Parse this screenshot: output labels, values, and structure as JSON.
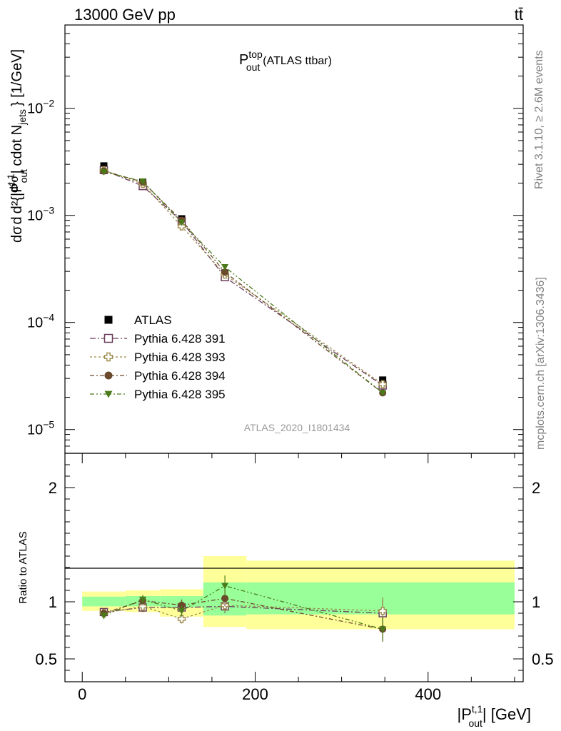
{
  "header": {
    "energy_label": "13000 GeV pp",
    "process_label": "tt̄"
  },
  "side_labels": {
    "rivet": "Rivet 3.1.10, ≥ 2.6M events",
    "mcplots": "mcplots.cern.ch [arXiv:1306.3436]"
  },
  "chart_data": [
    {
      "type": "line",
      "title": "P_out^top (ATLAS ttbar)",
      "title_main": "P",
      "title_sup": "top",
      "title_sub": "out",
      "title_rest": "(ATLAS ttbar)",
      "watermark": "ATLAS_2020_I1801434",
      "ylabel": "d²σ/d{|P_out^t,1| cdot N_jets} [1/GeV]",
      "ylabel_segments": {
        "a": "dσ",
        "b": "d",
        "c": "d²σ",
        "d": "d²{|P",
        "e": "out",
        "f": "t,1",
        "g": "| cdot N",
        "h": "jets",
        "i": "} [1/GeV]"
      },
      "yscale": "log",
      "ylim": [
        6e-06,
        0.06
      ],
      "xlim": [
        -20,
        510
      ],
      "y_ticks": [
        {
          "value": 0.01,
          "base": "10",
          "exp": "−2"
        },
        {
          "value": 0.001,
          "base": "10",
          "exp": "−3"
        },
        {
          "value": 0.0001,
          "base": "10",
          "exp": "−4"
        },
        {
          "value": 1e-05,
          "base": "10",
          "exp": "−5"
        }
      ],
      "legend_position": "lower-left",
      "series": [
        {
          "name": "ATLAS",
          "color": "#000000",
          "marker": "square-filled",
          "x": [
            25,
            70,
            115,
            165,
            347.5
          ],
          "y": [
            0.0029,
            0.00205,
            0.00093,
            0.00029,
            2.9e-05
          ]
        },
        {
          "name": "Pythia 6.428 391",
          "color": "#6b3c5a",
          "marker": "square-open",
          "dash": "8,3,2,3",
          "x": [
            25,
            70,
            115,
            165,
            347.5
          ],
          "y": [
            0.00265,
            0.00188,
            0.00088,
            0.000265,
            2.58e-05
          ]
        },
        {
          "name": "Pythia 6.428 393",
          "color": "#9a8a48",
          "marker": "cross-open",
          "dash": "3,3",
          "x": [
            25,
            70,
            115,
            165,
            347.5
          ],
          "y": [
            0.00263,
            0.00197,
            0.00079,
            0.00028,
            2.65e-05
          ]
        },
        {
          "name": "Pythia 6.428 394",
          "color": "#6b4a2b",
          "marker": "circle-filled",
          "dash": "6,3,2,3",
          "x": [
            25,
            70,
            115,
            165,
            347.5
          ],
          "y": [
            0.0026,
            0.00205,
            0.0009,
            0.000295,
            2.2e-05
          ]
        },
        {
          "name": "Pythia 6.428 395",
          "color": "#4a7a1a",
          "marker": "triangle-down-filled",
          "dash": "6,3,2,3,2,3",
          "x": [
            25,
            70,
            115,
            165,
            347.5
          ],
          "y": [
            0.00255,
            0.00208,
            0.00086,
            0.00033,
            2.2e-05
          ]
        }
      ]
    },
    {
      "type": "line",
      "ylabel": "Ratio to ATLAS",
      "xlabel": "|P_out^t,1| [GeV]",
      "xlabel_main": "|P",
      "xlabel_sup": "t,1",
      "xlabel_sub": "out",
      "xlabel_rest": "| [GeV]",
      "xlim": [
        -20,
        510
      ],
      "ylim": [
        0.3,
        2.3
      ],
      "x_ticks": [
        0,
        200,
        400
      ],
      "x_tick_labels": [
        "0",
        "200",
        "400"
      ],
      "y_ticks": [
        0.5,
        1,
        2
      ],
      "y_tick_labels": [
        "0.5",
        "1",
        "2"
      ],
      "bands": [
        {
          "x0": 0,
          "x1": 50,
          "inner": [
            0.96,
            1.045
          ],
          "outer": [
            0.92,
            1.09
          ]
        },
        {
          "x0": 50,
          "x1": 90,
          "inner": [
            0.96,
            1.05
          ],
          "outer": [
            0.91,
            1.1
          ]
        },
        {
          "x0": 90,
          "x1": 140,
          "inner": [
            0.95,
            1.05
          ],
          "outer": [
            0.87,
            1.11
          ]
        },
        {
          "x0": 140,
          "x1": 190,
          "inner": [
            0.88,
            1.17
          ],
          "outer": [
            0.78,
            1.4
          ]
        },
        {
          "x0": 190,
          "x1": 500,
          "inner": [
            0.89,
            1.17
          ],
          "outer": [
            0.76,
            1.36
          ]
        }
      ],
      "series": [
        {
          "name": "Pythia 6.428 391",
          "color": "#6b3c5a",
          "marker": "square-open",
          "dash": "8,3,2,3",
          "x": [
            25,
            70,
            115,
            165,
            347.5
          ],
          "y": [
            0.91,
            0.95,
            0.95,
            0.96,
            0.9
          ],
          "err": [
            0.03,
            0.04,
            0.04,
            0.06,
            0.12
          ]
        },
        {
          "name": "Pythia 6.428 393",
          "color": "#9a8a48",
          "marker": "cross-open",
          "dash": "3,3",
          "x": [
            25,
            70,
            115,
            165,
            347.5
          ],
          "y": [
            0.9,
            0.96,
            0.85,
            0.97,
            0.92
          ],
          "err": [
            0.03,
            0.04,
            0.04,
            0.06,
            0.12
          ]
        },
        {
          "name": "Pythia 6.428 394",
          "color": "#6b4a2b",
          "marker": "circle-filled",
          "dash": "6,3,2,3",
          "x": [
            25,
            70,
            115,
            165,
            347.5
          ],
          "y": [
            0.9,
            1.01,
            0.97,
            1.03,
            0.76
          ],
          "err": [
            0.03,
            0.04,
            0.05,
            0.07,
            0.1
          ]
        },
        {
          "name": "Pythia 6.428 395",
          "color": "#4a7a1a",
          "marker": "triangle-down-filled",
          "dash": "6,3,2,3,2,3",
          "x": [
            25,
            70,
            115,
            165,
            347.5
          ],
          "y": [
            0.88,
            1.02,
            0.92,
            1.14,
            0.76
          ],
          "err": [
            0.03,
            0.04,
            0.05,
            0.09,
            0.11
          ]
        }
      ]
    }
  ],
  "colors": {
    "band_inner": "#99ff99",
    "band_outer": "#ffff99",
    "frame": "#000000",
    "side_text": "#808080",
    "watermark": "#9a9a9a"
  }
}
